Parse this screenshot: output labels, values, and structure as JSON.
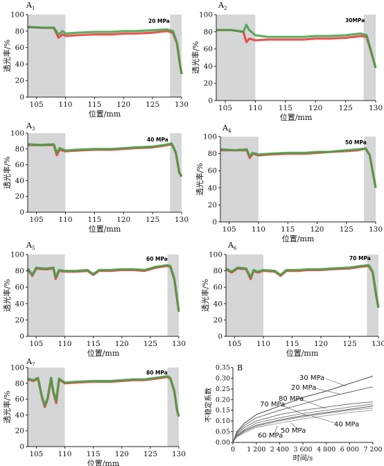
{
  "chart_data": [
    {
      "panel": "A1",
      "type": "line",
      "pressure_label": "20 MPa",
      "xlabel": "位置/mm",
      "ylabel": "透光率/%",
      "xlim": [
        103.5,
        130
      ],
      "ylim": [
        0,
        100
      ],
      "xticks": [
        "105",
        "110",
        "115",
        "120",
        "125",
        "130"
      ],
      "yticks": [
        "0",
        "20",
        "40",
        "60",
        "80",
        "100"
      ],
      "shaded_regions": [
        [
          103.5,
          110
        ],
        [
          128,
          130
        ]
      ],
      "series": [
        {
          "color": "#e53935",
          "x": [
            103.5,
            106,
            108,
            108.8,
            109.5,
            110,
            112,
            115,
            118,
            120,
            122,
            125,
            127.5,
            128.5,
            129.2,
            129.7,
            130
          ],
          "values": [
            85,
            84,
            84,
            72,
            76,
            74,
            75,
            76,
            76,
            77,
            77,
            78,
            80,
            78,
            65,
            40,
            28
          ]
        },
        {
          "color": "#43a047",
          "x": [
            103.5,
            106,
            108,
            108.8,
            109.5,
            110,
            112,
            115,
            118,
            120,
            122,
            125,
            127.5,
            128.5,
            129.2,
            129.7,
            130
          ],
          "values": [
            85,
            84,
            84,
            76,
            80,
            77,
            78,
            79,
            79,
            80,
            80,
            81,
            82,
            80,
            66,
            41,
            28
          ]
        }
      ]
    },
    {
      "panel": "A2",
      "type": "line",
      "pressure_label": "30MPa",
      "xlabel": "位置/mm",
      "ylabel": "透光率/%",
      "xlim": [
        103.5,
        130
      ],
      "ylim": [
        0,
        100
      ],
      "xticks": [
        "105",
        "110",
        "115",
        "120",
        "125",
        "130"
      ],
      "yticks": [
        "0",
        "20",
        "40",
        "60",
        "80",
        "100"
      ],
      "shaded_regions": [
        [
          103.5,
          110
        ],
        [
          128,
          130
        ]
      ],
      "series": [
        {
          "color": "#e53935",
          "x": [
            103.5,
            106,
            108,
            108.5,
            109,
            110,
            112,
            115,
            118,
            120,
            122,
            125,
            127.5,
            128.5,
            129.3,
            130
          ],
          "values": [
            82,
            82,
            80,
            68,
            72,
            70,
            71,
            71,
            71,
            72,
            72,
            73,
            75,
            74,
            55,
            38
          ]
        },
        {
          "color": "#43a047",
          "x": [
            103.5,
            106,
            108,
            108.5,
            109,
            110,
            112,
            115,
            118,
            120,
            122,
            125,
            127.5,
            128.5,
            129.3,
            130
          ],
          "values": [
            82,
            82,
            80,
            88,
            82,
            76,
            74,
            74,
            74,
            75,
            75,
            76,
            78,
            76,
            56,
            38
          ]
        }
      ]
    },
    {
      "panel": "A3",
      "type": "line",
      "pressure_label": "40 MPa",
      "xlabel": "位置/mm",
      "ylabel": "透光率/%",
      "xlim": [
        103.5,
        130
      ],
      "ylim": [
        0,
        100
      ],
      "xticks": [
        "105",
        "110",
        "115",
        "120",
        "125",
        "130"
      ],
      "yticks": [
        "0",
        "20",
        "40",
        "60",
        "80",
        "100"
      ],
      "shaded_regions": [
        [
          103.5,
          110
        ],
        [
          128,
          130
        ]
      ],
      "series": [
        {
          "color": "#e53935",
          "x": [
            103.5,
            106,
            108,
            108.5,
            109,
            110,
            112,
            115,
            118,
            120,
            122,
            125,
            127,
            128.3,
            129,
            129.6,
            130
          ],
          "values": [
            85,
            85,
            85,
            72,
            79,
            77,
            78,
            79,
            79,
            80,
            81,
            82,
            84,
            86,
            75,
            50,
            45
          ]
        },
        {
          "color": "#43a047",
          "x": [
            103.5,
            106,
            108,
            108.5,
            109,
            110,
            112,
            115,
            118,
            120,
            122,
            125,
            127,
            128.3,
            129,
            129.6,
            130
          ],
          "values": [
            86,
            85,
            86,
            75,
            81,
            78,
            79,
            80,
            80,
            81,
            82,
            83,
            85,
            87,
            76,
            51,
            45
          ]
        }
      ]
    },
    {
      "panel": "A4",
      "type": "line",
      "pressure_label": "50 MPa",
      "xlabel": "位置/mm",
      "ylabel": "透光率/%",
      "xlim": [
        103.5,
        130
      ],
      "ylim": [
        0,
        100
      ],
      "xticks": [
        "105",
        "110",
        "115",
        "120",
        "125",
        "130"
      ],
      "yticks": [
        "0",
        "20",
        "40",
        "60",
        "80",
        "100"
      ],
      "shaded_regions": [
        [
          103.5,
          110
        ],
        [
          128,
          130
        ]
      ],
      "series": [
        {
          "color": "#e53935",
          "x": [
            103.5,
            106,
            108,
            108.5,
            109,
            110,
            112,
            115,
            118,
            120,
            122,
            125,
            127,
            128.3,
            129,
            129.6,
            130
          ],
          "values": [
            84,
            84,
            84,
            75,
            80,
            78,
            79,
            80,
            80,
            81,
            82,
            83,
            84,
            86,
            78,
            55,
            40
          ]
        },
        {
          "color": "#43a047",
          "x": [
            103.5,
            106,
            108,
            108.5,
            109,
            110,
            112,
            115,
            118,
            120,
            122,
            125,
            127,
            128.3,
            129,
            129.6,
            130
          ],
          "values": [
            85,
            84,
            85,
            77,
            81,
            79,
            80,
            81,
            81,
            82,
            82,
            84,
            85,
            86,
            78,
            55,
            40
          ]
        }
      ]
    },
    {
      "panel": "A5",
      "type": "line",
      "pressure_label": "60 MPa",
      "xlabel": "位置/mm",
      "ylabel": "透光率/%",
      "xlim": [
        103.5,
        130
      ],
      "ylim": [
        0,
        100
      ],
      "xticks": [
        "105",
        "110",
        "115",
        "120",
        "125",
        "130"
      ],
      "yticks": [
        "0",
        "20",
        "40",
        "60",
        "80",
        "100"
      ],
      "shaded_regions": [
        [
          103.5,
          110
        ],
        [
          128,
          130
        ]
      ],
      "series": [
        {
          "color": "#e53935",
          "x": [
            103.5,
            104.3,
            105,
            106,
            107,
            108,
            108.4,
            109,
            110,
            112,
            114,
            115,
            116,
            118,
            120,
            122,
            124,
            126,
            128,
            128.5,
            129.2,
            129.7,
            130
          ],
          "values": [
            82,
            74,
            83,
            82,
            82,
            83,
            70,
            80,
            79,
            79,
            80,
            75,
            80,
            80,
            81,
            81,
            80,
            84,
            86,
            85,
            70,
            45,
            30
          ]
        },
        {
          "color": "#43a047",
          "x": [
            103.5,
            104.3,
            105,
            106,
            107,
            108,
            108.4,
            109,
            110,
            112,
            114,
            115,
            116,
            118,
            120,
            122,
            124,
            126,
            128,
            128.5,
            129.2,
            129.7,
            130
          ],
          "values": [
            83,
            75,
            84,
            83,
            83,
            84,
            72,
            81,
            80,
            80,
            81,
            76,
            81,
            81,
            82,
            82,
            81,
            85,
            87,
            86,
            71,
            46,
            30
          ]
        }
      ]
    },
    {
      "panel": "A6",
      "type": "line",
      "pressure_label": "70 MPa",
      "xlabel": "位置/mm",
      "ylabel": "透光率/%",
      "xlim": [
        103.5,
        130
      ],
      "ylim": [
        0,
        100
      ],
      "xticks": [
        "105",
        "110",
        "115",
        "120",
        "125",
        "130"
      ],
      "yticks": [
        "0",
        "20",
        "40",
        "60",
        "80",
        "100"
      ],
      "shaded_regions": [
        [
          103.5,
          110
        ],
        [
          128,
          130
        ]
      ],
      "series": [
        {
          "color": "#e53935",
          "x": [
            103.5,
            104.5,
            105.5,
            107,
            107.8,
            108.3,
            109,
            110,
            112,
            113,
            114,
            116,
            118,
            120,
            122,
            125,
            127,
            128.3,
            129,
            129.6,
            130
          ],
          "values": [
            82,
            78,
            83,
            82,
            70,
            80,
            78,
            80,
            79,
            74,
            80,
            80,
            81,
            81,
            82,
            83,
            85,
            86,
            78,
            50,
            35
          ]
        },
        {
          "color": "#43a047",
          "x": [
            103.5,
            104.5,
            105.5,
            107,
            107.8,
            108.3,
            109,
            110,
            112,
            113,
            114,
            116,
            118,
            120,
            122,
            125,
            127,
            128.3,
            129,
            129.6,
            130
          ],
          "values": [
            83,
            79,
            84,
            83,
            72,
            81,
            79,
            81,
            80,
            75,
            81,
            81,
            82,
            82,
            83,
            84,
            86,
            87,
            79,
            51,
            35
          ]
        }
      ]
    },
    {
      "panel": "A7",
      "type": "line",
      "pressure_label": "80 MPa",
      "xlabel": "位置/mm",
      "ylabel": "透光率/%",
      "xlim": [
        103.5,
        130
      ],
      "ylim": [
        0,
        100
      ],
      "xticks": [
        "105",
        "110",
        "115",
        "120",
        "125",
        "130"
      ],
      "yticks": [
        "0",
        "20",
        "40",
        "60",
        "80",
        "100"
      ],
      "shaded_regions": [
        [
          103.5,
          110
        ],
        [
          128,
          130
        ]
      ],
      "series": [
        {
          "color": "#e53935",
          "x": [
            103.5,
            104.5,
            105.3,
            106,
            106.5,
            107,
            107.6,
            108,
            108.5,
            109,
            110,
            112,
            115,
            118,
            120,
            122,
            124,
            126,
            128,
            128.5,
            129.2,
            129.7,
            130
          ],
          "values": [
            85,
            83,
            86,
            62,
            50,
            60,
            86,
            68,
            55,
            85,
            80,
            81,
            82,
            82,
            83,
            84,
            84,
            86,
            88,
            86,
            70,
            45,
            38
          ]
        },
        {
          "color": "#43a047",
          "x": [
            103.5,
            104.5,
            105.3,
            106,
            106.5,
            107,
            107.6,
            108,
            108.5,
            109,
            110,
            112,
            115,
            118,
            120,
            122,
            124,
            126,
            128,
            128.5,
            129.2,
            129.7,
            130
          ],
          "values": [
            86,
            84,
            87,
            63,
            52,
            62,
            87,
            70,
            58,
            86,
            81,
            82,
            83,
            83,
            84,
            85,
            85,
            87,
            89,
            87,
            71,
            46,
            38
          ]
        }
      ]
    },
    {
      "panel": "B",
      "type": "line",
      "xlabel": "时间/s",
      "ylabel": "不稳定系数",
      "xlim": [
        0,
        7200
      ],
      "ylim": [
        0,
        0.35
      ],
      "xticks": [
        "0",
        "1 200",
        "2 400",
        "3 600",
        "4 800",
        "6 000",
        "7 200"
      ],
      "yticks": [
        "0.00",
        "0.05",
        "0.10",
        "0.15",
        "0.20",
        "0.25",
        "0.30",
        "0.35"
      ],
      "x": [
        0,
        200,
        600,
        1200,
        2400,
        3600,
        4800,
        6000,
        7200
      ],
      "series": [
        {
          "name": "30 MPa",
          "color": "#333333",
          "values": [
            0,
            0.05,
            0.09,
            0.13,
            0.17,
            0.21,
            0.24,
            0.275,
            0.31
          ]
        },
        {
          "name": "20 MPa",
          "color": "#555555",
          "values": [
            0,
            0.045,
            0.08,
            0.115,
            0.15,
            0.18,
            0.21,
            0.235,
            0.26
          ]
        },
        {
          "name": "80 MPa",
          "color": "#666666",
          "values": [
            0,
            0.04,
            0.07,
            0.1,
            0.13,
            0.15,
            0.165,
            0.18,
            0.19
          ]
        },
        {
          "name": "70 MPa",
          "color": "#777777",
          "values": [
            0,
            0.035,
            0.06,
            0.09,
            0.115,
            0.135,
            0.15,
            0.165,
            0.18
          ]
        },
        {
          "name": "40 MPa",
          "color": "#444444",
          "values": [
            0,
            0.03,
            0.055,
            0.08,
            0.105,
            0.125,
            0.14,
            0.155,
            0.17
          ]
        },
        {
          "name": "50 MPa",
          "color": "#888888",
          "values": [
            0,
            0.028,
            0.05,
            0.075,
            0.1,
            0.12,
            0.135,
            0.15,
            0.16
          ]
        },
        {
          "name": "60 MPa",
          "color": "#999999",
          "values": [
            0,
            0.025,
            0.045,
            0.07,
            0.09,
            0.11,
            0.125,
            0.14,
            0.15
          ]
        }
      ],
      "labels": [
        "30 MPa",
        "20 MPa",
        "80 MPa",
        "70 MPa",
        "40 MPa",
        "50 MPa",
        "60 MPa"
      ]
    }
  ],
  "panel_letters": [
    "A1",
    "A2",
    "A3",
    "A4",
    "A5",
    "A6",
    "A7",
    "B"
  ]
}
